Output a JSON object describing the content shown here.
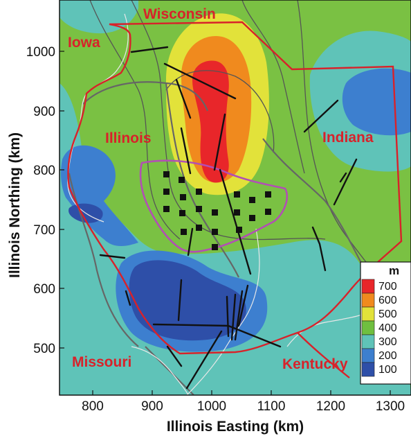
{
  "axes": {
    "x_label": "Illinois Easting (km)",
    "y_label": "Illinois Northing (km)",
    "x_ticks": [
      "800",
      "900",
      "1000",
      "1100",
      "1200",
      "1300"
    ],
    "y_ticks": [
      "1000",
      "900",
      "800",
      "700",
      "600",
      "500"
    ]
  },
  "regions": {
    "wisconsin": "Wisconsin",
    "iowa": "Iowa",
    "illinois": "Illinois",
    "indiana": "Indiana",
    "missouri": "Missouri",
    "kentucky": "Kentucky"
  },
  "legend": {
    "title": "m",
    "items": [
      {
        "label": "700",
        "color": "#e8262a"
      },
      {
        "label": "600",
        "color": "#f08a1e"
      },
      {
        "label": "500",
        "color": "#e2e23a"
      },
      {
        "label": "400",
        "color": "#6fbf3f"
      },
      {
        "label": "300",
        "color": "#5fc3b8"
      },
      {
        "label": "200",
        "color": "#3d7fcf"
      },
      {
        "label": "100",
        "color": "#2e4fa8"
      }
    ]
  },
  "colors": {
    "state_boundary": "#d8222a",
    "study_area_outline": "#b24fb4",
    "faults": "#111111",
    "contour_lines": "#555555",
    "background_field": "#7ac143"
  }
}
